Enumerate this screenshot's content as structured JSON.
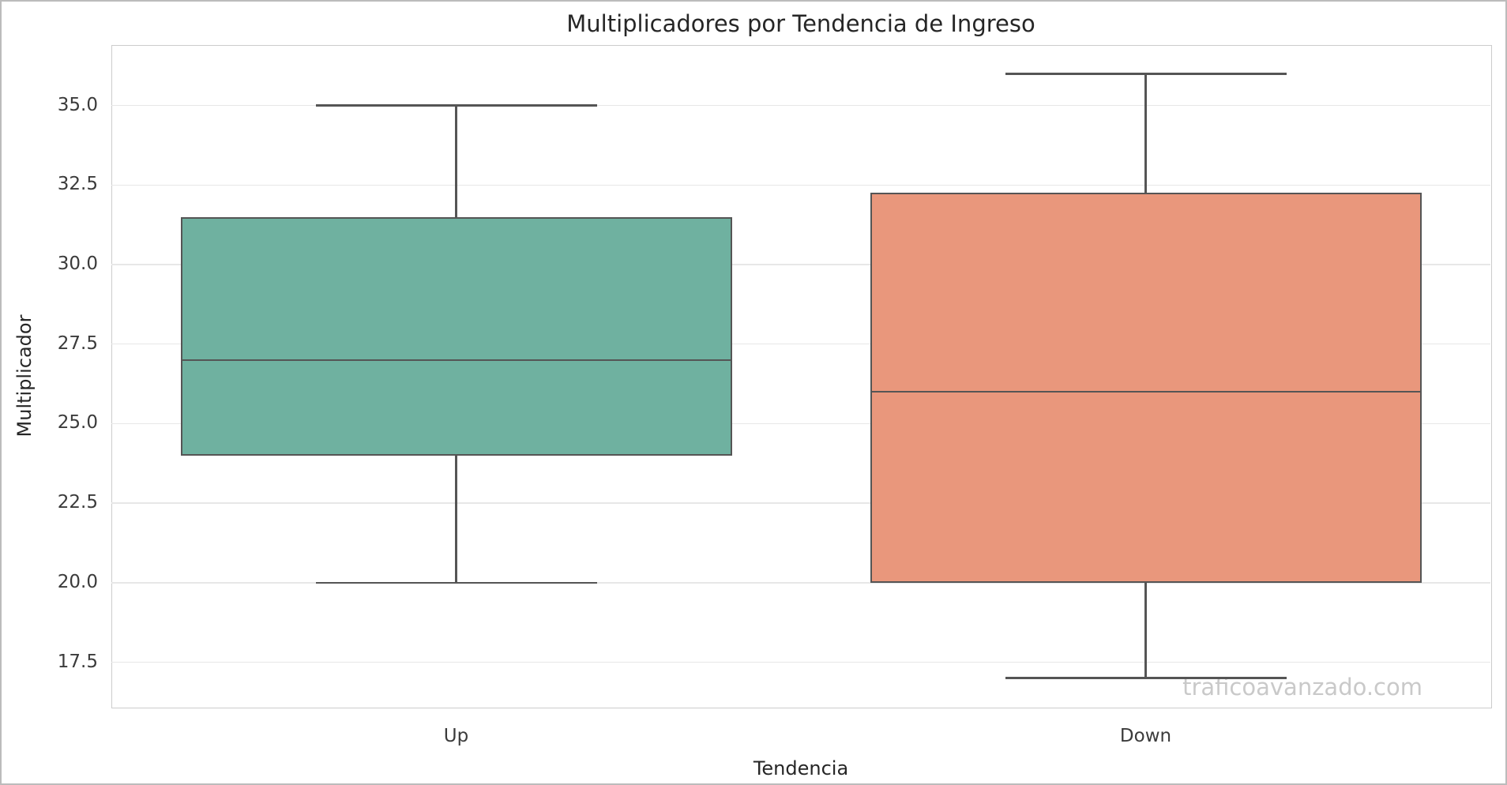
{
  "title": "Multiplicadores por Tendencia de Ingreso",
  "watermark": "traficoavanzado.com",
  "chart_data": {
    "type": "box",
    "title": "Multiplicadores por Tendencia de Ingreso",
    "xlabel": "Tendencia",
    "ylabel": "Multiplicador",
    "categories": [
      "Up",
      "Down"
    ],
    "series": [
      {
        "name": "Up",
        "whisker_low": 20.0,
        "q1": 24.0,
        "median": 27.0,
        "q3": 31.5,
        "whisker_high": 35.0,
        "fill_color": "#6FB1A0"
      },
      {
        "name": "Down",
        "whisker_low": 17.0,
        "q1": 20.0,
        "median": 26.0,
        "q3": 32.25,
        "whisker_high": 36.0,
        "fill_color": "#E9977C"
      }
    ],
    "yticks": [
      17.5,
      20.0,
      22.5,
      25.0,
      27.5,
      30.0,
      32.5,
      35.0
    ],
    "ylim": [
      16.1,
      36.9
    ],
    "grid": "horizontal",
    "legend": "none",
    "line_color": "#555555",
    "grid_color": "#e7e7e7",
    "watermark_color": "#c9c9c9"
  }
}
